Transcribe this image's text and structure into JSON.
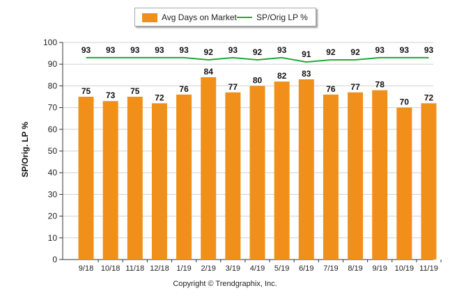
{
  "chart_data": {
    "type": "bar",
    "categories": [
      "9/18",
      "10/18",
      "11/18",
      "12/18",
      "1/19",
      "2/19",
      "3/19",
      "4/19",
      "5/19",
      "6/19",
      "7/19",
      "8/19",
      "9/19",
      "10/19",
      "11/19"
    ],
    "series": [
      {
        "name": "Avg Days on Market",
        "type": "bar",
        "color": "#f0901a",
        "values": [
          75,
          73,
          75,
          72,
          76,
          84,
          77,
          80,
          82,
          83,
          76,
          77,
          78,
          70,
          72
        ]
      },
      {
        "name": "SP/Orig LP %",
        "type": "line",
        "color": "#1faa3a",
        "values": [
          93,
          93,
          93,
          93,
          93,
          92,
          93,
          92,
          93,
          91,
          92,
          92,
          93,
          93,
          93
        ]
      }
    ],
    "ylabel": "SP/Orig. LP %",
    "ylim": [
      0,
      100
    ],
    "yticks": [
      0,
      10,
      20,
      30,
      40,
      50,
      60,
      70,
      80,
      90,
      100
    ],
    "grid": true,
    "legend_position": "top-center"
  },
  "footer": {
    "copyright": "Copyright © Trendgraphix, Inc."
  },
  "colors": {
    "bar": "#f0901a",
    "line": "#1faa3a",
    "grid": "#d0d0d0"
  }
}
